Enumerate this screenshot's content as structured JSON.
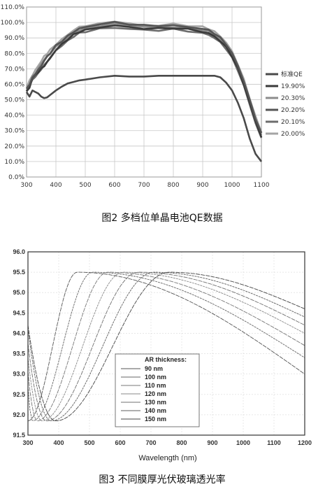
{
  "figures": [
    {
      "caption": "图2 多档位单晶电池QE数据"
    },
    {
      "caption": "图3 不同膜厚光伏玻璃透光率"
    }
  ],
  "chart_data": [
    {
      "type": "line",
      "title": "",
      "xlabel": "",
      "ylabel": "",
      "xlim": [
        300,
        1100
      ],
      "ylim": [
        0,
        110
      ],
      "x_ticks": [
        "300",
        "400",
        "500",
        "600",
        "700",
        "800",
        "900",
        "1000",
        "1100"
      ],
      "y_ticks": [
        "0.0%",
        "10.0%",
        "20.0%",
        "30.0%",
        "40.0%",
        "50.0%",
        "60.0%",
        "70.0%",
        "80.0%",
        "90.0%",
        "100.0%",
        "110.0%"
      ],
      "grid": true,
      "legend_position": "right",
      "x": [
        300,
        310,
        320,
        330,
        340,
        350,
        360,
        370,
        380,
        400,
        420,
        440,
        460,
        480,
        500,
        550,
        600,
        650,
        700,
        750,
        800,
        850,
        900,
        920,
        940,
        960,
        980,
        1000,
        1020,
        1040,
        1060,
        1080,
        1100
      ],
      "series": [
        {
          "name": "标准QE",
          "color": "#4a4a4a",
          "values": [
            55,
            52,
            56,
            55,
            54,
            52,
            51,
            51.5,
            53,
            56,
            58.5,
            60.5,
            61.5,
            62.5,
            63,
            64.5,
            65.5,
            65,
            65,
            65.5,
            65.5,
            65.5,
            65.5,
            65.5,
            65.5,
            64.5,
            61,
            56,
            48,
            38,
            25,
            15,
            10
          ]
        },
        {
          "name": "19.90%",
          "color": "#3a3a3a",
          "values": [
            55,
            58,
            64,
            66,
            68,
            70,
            72,
            74,
            77,
            82,
            86,
            89,
            92,
            94,
            95,
            97,
            98,
            97,
            96,
            96,
            96.5,
            95.5,
            94,
            93,
            91,
            88,
            84,
            78,
            70,
            60,
            48,
            36,
            26
          ]
        },
        {
          "name": "20.30%",
          "color": "#8c8c8c",
          "values": [
            58,
            60,
            65,
            67,
            70,
            73,
            76,
            78,
            80,
            84,
            87,
            90,
            93,
            95,
            96,
            98,
            99,
            98,
            97,
            97,
            97,
            96,
            95,
            94,
            92,
            89,
            85,
            79,
            71,
            61,
            49,
            37,
            27
          ]
        },
        {
          "name": "20.20%",
          "color": "#555555",
          "values": [
            57,
            60,
            64,
            67,
            69,
            72,
            75,
            78,
            80,
            85,
            88,
            91,
            94,
            96,
            97,
            99,
            100,
            99,
            98,
            98,
            98,
            97,
            96,
            95,
            93,
            90,
            86,
            80,
            72,
            62,
            50,
            38,
            28
          ]
        },
        {
          "name": "20.10%",
          "color": "#6d6d6d",
          "values": [
            56,
            59,
            63,
            65,
            67,
            70,
            72,
            75,
            77,
            82,
            85,
            88,
            91,
            93,
            94,
            96,
            96.5,
            96,
            95,
            95,
            95.5,
            94.5,
            93,
            92,
            90,
            87,
            83,
            77,
            69,
            59,
            47,
            35,
            25
          ]
        },
        {
          "name": "20.00%",
          "color": "#a5a5a5",
          "values": [
            58,
            62,
            66,
            69,
            72,
            75,
            78,
            80,
            82,
            86,
            89,
            92,
            95,
            97,
            98,
            99,
            101,
            99,
            98,
            98,
            99,
            98,
            97,
            96,
            94,
            91,
            87,
            81,
            73,
            63,
            51,
            39,
            29
          ]
        }
      ]
    },
    {
      "type": "line",
      "title": "",
      "xlabel": "Wavelength (nm)",
      "ylabel": "",
      "xlim": [
        300,
        1200
      ],
      "ylim": [
        91.5,
        96.0
      ],
      "x_ticks": [
        "300",
        "400",
        "500",
        "600",
        "700",
        "800",
        "900",
        "1000",
        "1100",
        "1200"
      ],
      "y_ticks": [
        "91.5",
        "92.0",
        "92.5",
        "93.0",
        "93.5",
        "94.0",
        "94.5",
        "95.0",
        "95.5",
        "96.0"
      ],
      "grid": true,
      "legend_title": "AR thickness:",
      "legend_position": "bottom-center",
      "series": [
        {
          "name": "90 nm",
          "min_x": 300,
          "peak_x": 460,
          "end_y": 93.0
        },
        {
          "name": "100 nm",
          "min_x": 315,
          "peak_x": 510,
          "end_y": 93.4
        },
        {
          "name": "110 nm",
          "min_x": 330,
          "peak_x": 560,
          "end_y": 93.7
        },
        {
          "name": "120 nm",
          "min_x": 345,
          "peak_x": 610,
          "end_y": 94.0
        },
        {
          "name": "130 nm",
          "min_x": 360,
          "peak_x": 660,
          "end_y": 94.2
        },
        {
          "name": "140 nm",
          "min_x": 375,
          "peak_x": 710,
          "end_y": 94.4
        },
        {
          "name": "150 nm",
          "min_x": 390,
          "peak_x": 760,
          "end_y": 94.6
        }
      ],
      "min_y": 91.85,
      "peak_y": 95.5
    }
  ]
}
